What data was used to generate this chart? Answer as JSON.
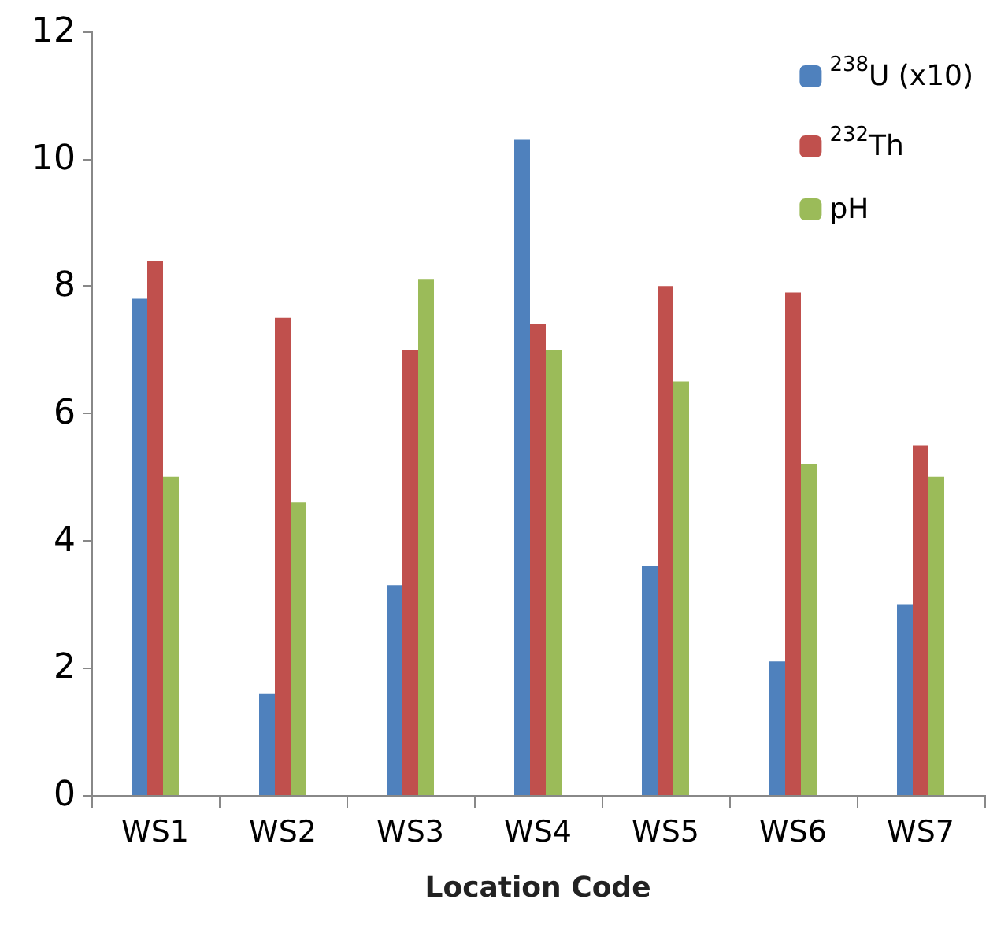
{
  "chart_data": {
    "type": "bar",
    "xlabel": "Location Code",
    "categories": [
      "WS1",
      "WS2",
      "WS3",
      "WS4",
      "WS5",
      "WS6",
      "WS7"
    ],
    "series": [
      {
        "name": "$^{238}$U (x10)",
        "color": "#4f81bd",
        "values": [
          7.8,
          1.6,
          3.3,
          10.3,
          3.6,
          2.1,
          3.0
        ]
      },
      {
        "name": "$^{232}$Th",
        "color": "#c0504d",
        "values": [
          8.4,
          7.5,
          7.0,
          7.4,
          8.0,
          7.9,
          5.5
        ]
      },
      {
        "name": "pH",
        "color": "#9bbb59",
        "values": [
          5.0,
          4.6,
          8.1,
          7.0,
          6.5,
          5.2,
          5.0
        ]
      }
    ],
    "ylim": [
      0,
      12
    ],
    "yticks": [
      0,
      2,
      4,
      6,
      8,
      10,
      12
    ],
    "grid": false,
    "legend": "top right"
  }
}
